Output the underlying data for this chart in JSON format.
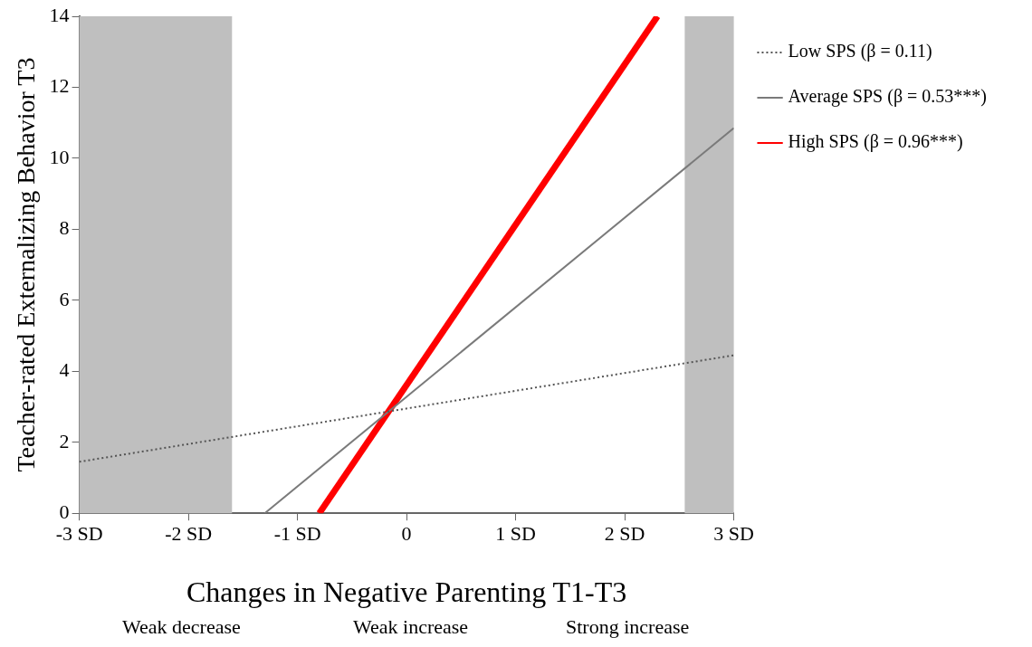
{
  "chart_data": {
    "type": "line",
    "xlabel": "Changes in Negative Parenting T1-T3",
    "ylabel": "Teacher-rated Externalizing Behavior T3",
    "xlim": [
      -3,
      3
    ],
    "xticks": [
      {
        "value": -3,
        "label": "-3 SD"
      },
      {
        "value": -2,
        "label": "-2 SD"
      },
      {
        "value": -1,
        "label": "-1 SD"
      },
      0,
      {
        "value": 1,
        "label": "1 SD"
      },
      {
        "value": 2,
        "label": "2 SD"
      },
      {
        "value": 3,
        "label": "3 SD"
      }
    ],
    "ylim": [
      0,
      14
    ],
    "yticks": [
      0,
      2,
      4,
      6,
      8,
      10,
      12,
      14
    ],
    "grid": false,
    "legend": "top right",
    "marker": "none",
    "bands": [
      {
        "axis": "x",
        "from": -3,
        "to": -1.6,
        "color": "#bfbfbf"
      },
      {
        "axis": "x",
        "from": 2.55,
        "to": 3,
        "color": "#bfbfbf"
      }
    ],
    "series": [
      {
        "name": "Low SPS (β = 0.11)",
        "color": "#555555",
        "line_style": "dotted",
        "x": [
          -3,
          3
        ],
        "values": [
          1.45,
          4.45
        ]
      },
      {
        "name": "Average SPS (β = 0.53***)",
        "color": "#7a7a7a",
        "line_style": "solid",
        "x": [
          -1.3,
          3
        ],
        "values": [
          0,
          10.85
        ]
      },
      {
        "name": "High SPS (β = 0.96***)",
        "color": "#ff0000",
        "line_style": "solid",
        "x": [
          -0.8,
          2.3
        ],
        "values": [
          0,
          14
        ]
      }
    ],
    "annotations": [
      "Weak decrease",
      "Weak increase",
      "Strong increase"
    ]
  }
}
